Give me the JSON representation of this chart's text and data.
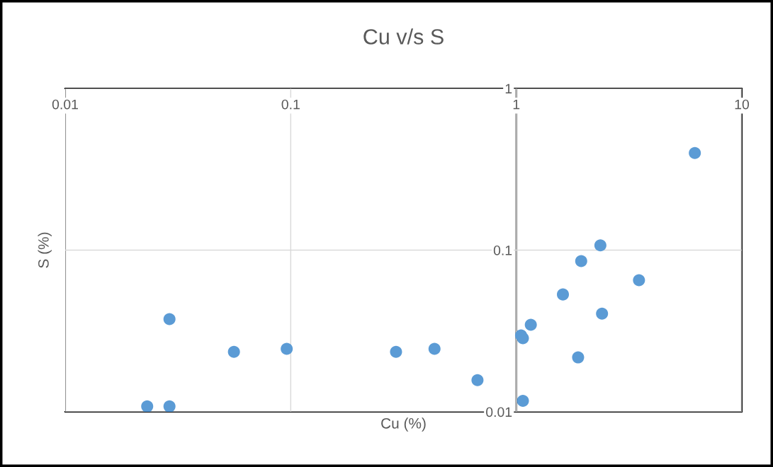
{
  "chart_data": {
    "type": "scatter",
    "title": "Cu v/s S",
    "xlabel": "Cu (%)",
    "ylabel": "S (%)",
    "x": [
      0.0231,
      0.029,
      0.029,
      0.056,
      0.096,
      0.293,
      0.434,
      0.673,
      1.05,
      1.07,
      1.07,
      1.16,
      1.61,
      1.88,
      1.94,
      2.36,
      2.4,
      3.5,
      6.19
    ],
    "values": [
      0.0108,
      0.0108,
      0.0374,
      0.0235,
      0.0245,
      0.0235,
      0.0245,
      0.0157,
      0.0297,
      0.0285,
      0.0117,
      0.0345,
      0.0532,
      0.0217,
      0.0855,
      0.107,
      0.0405,
      0.0651,
      0.399
    ],
    "color": "#5b9bd5",
    "marker": "circle",
    "log": "xy",
    "grid": true,
    "xlim": [
      0.01,
      10
    ],
    "ylim": [
      0.01,
      1
    ],
    "xticks": [
      0.01,
      0.1,
      1,
      10
    ],
    "yticks": [
      0.01,
      0.1,
      1
    ]
  }
}
